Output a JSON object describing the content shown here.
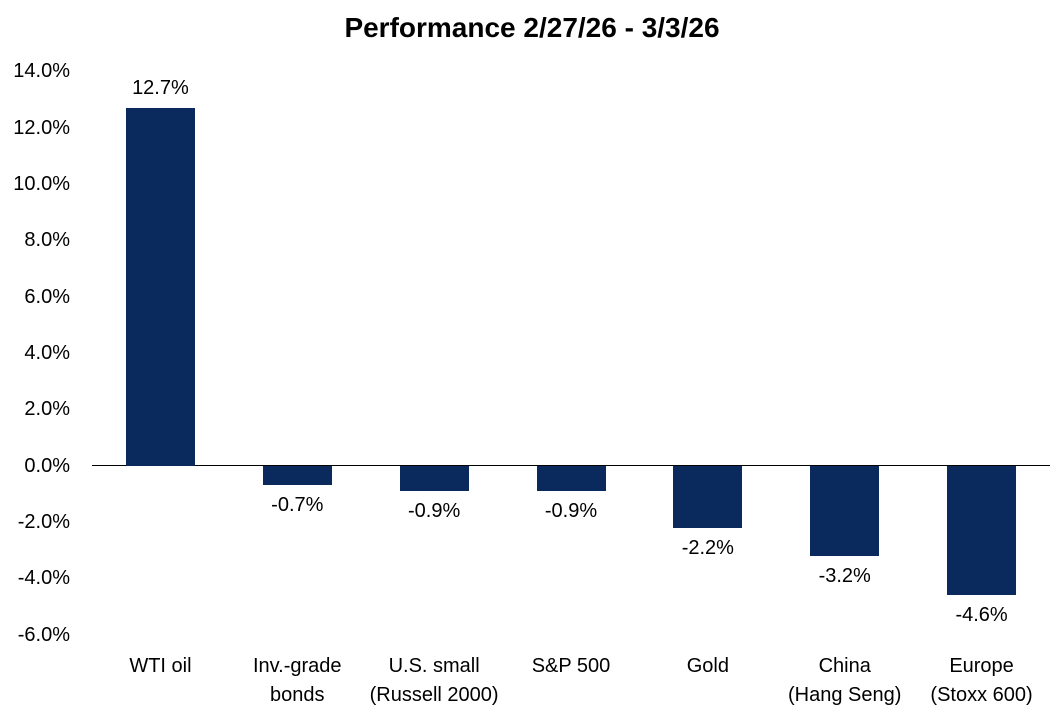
{
  "chart_data": {
    "type": "bar",
    "title": "Performance 2/27/26 - 3/3/26",
    "categories": [
      "WTI oil",
      "Inv.-grade\nbonds",
      "U.S. small\n(Russell 2000)",
      "S&P 500",
      "Gold",
      "China\n(Hang Seng)",
      "Europe\n(Stoxx 600)"
    ],
    "values": [
      12.7,
      -0.7,
      -0.9,
      -0.9,
      -2.2,
      -3.2,
      -4.6
    ],
    "data_labels": [
      "12.7%",
      "-0.7%",
      "-0.9%",
      "-0.9%",
      "-2.2%",
      "-3.2%",
      "-4.6%"
    ],
    "y_ticks": [
      "14.0%",
      "12.0%",
      "10.0%",
      "8.0%",
      "6.0%",
      "4.0%",
      "2.0%",
      "0.0%",
      "-2.0%",
      "-4.0%",
      "-6.0%"
    ],
    "y_tick_values": [
      14,
      12,
      10,
      8,
      6,
      4,
      2,
      0,
      -2,
      -4,
      -6
    ],
    "ylim": [
      -6,
      14
    ],
    "xlabel": "",
    "ylabel": "",
    "bar_color": "#0a2a5e",
    "axis_color": "#000000",
    "text_color": "#000000",
    "background_color": "#ffffff",
    "grid": false,
    "legend": false,
    "data_label_position": "outside-end"
  }
}
